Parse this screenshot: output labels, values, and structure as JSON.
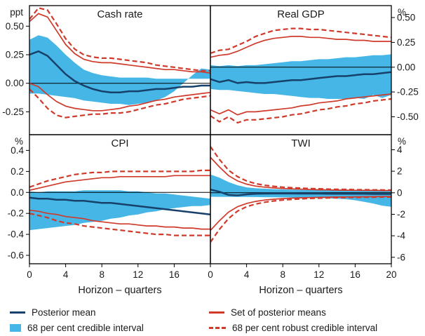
{
  "figure": {
    "x_axis_title": "Horizon – quarters",
    "x_range": [
      0,
      20
    ],
    "grid": false
  },
  "colors": {
    "posterior_mean": "#17416b",
    "credible_band": "#45b6e6",
    "red_lines": "#cf3a2b",
    "axis": "#000000",
    "text": "#1a1a1a",
    "background": "#ffffff"
  },
  "legend": {
    "posterior_mean": "Posterior mean",
    "credible_interval": "68 per cent credible interval",
    "set_of_posterior_means": "Set of posterior means",
    "robust_credible_interval": "68 per cent robust credible interval"
  },
  "chart_data": {
    "type": "line",
    "x_label": "Horizon – quarters",
    "x": [
      0,
      1,
      2,
      3,
      4,
      5,
      6,
      7,
      8,
      9,
      10,
      11,
      12,
      13,
      14,
      15,
      16,
      17,
      18,
      19,
      20
    ],
    "panels": [
      {
        "title": "Cash rate",
        "unit": "ppt",
        "label_side": "left",
        "ylim": [
          -0.45,
          0.68
        ],
        "y_ticks": [
          {
            "v": 0.5,
            "label": "0.50"
          },
          {
            "v": 0.25,
            "label": "0.25"
          },
          {
            "v": 0.0,
            "label": "0.00"
          },
          {
            "v": -0.25,
            "label": "-0.25"
          }
        ],
        "x_tick_labels": null,
        "series": {
          "posterior_mean": [
            0.25,
            0.28,
            0.24,
            0.16,
            0.08,
            0.02,
            -0.02,
            -0.05,
            -0.07,
            -0.08,
            -0.08,
            -0.07,
            -0.07,
            -0.06,
            -0.05,
            -0.05,
            -0.04,
            -0.03,
            -0.03,
            -0.02,
            -0.02
          ],
          "band_hi": [
            0.38,
            0.42,
            0.4,
            0.33,
            0.25,
            0.18,
            0.12,
            0.09,
            0.07,
            0.06,
            0.05,
            0.05,
            0.05,
            0.05,
            0.04,
            0.04,
            0.04,
            0.04,
            0.04,
            0.04,
            0.04
          ],
          "band_lo": [
            0.12,
            0.13,
            0.07,
            0.0,
            -0.07,
            -0.12,
            -0.15,
            -0.17,
            -0.18,
            -0.19,
            -0.18,
            -0.18,
            -0.17,
            -0.16,
            -0.15,
            -0.13,
            -0.12,
            -0.11,
            -0.1,
            -0.09,
            -0.09
          ],
          "means_hi": [
            0.54,
            0.61,
            0.58,
            0.46,
            0.34,
            0.26,
            0.21,
            0.19,
            0.18,
            0.18,
            0.17,
            0.16,
            0.15,
            0.14,
            0.13,
            0.12,
            0.12,
            0.11,
            0.1,
            0.1,
            0.09
          ],
          "means_lo": [
            0.0,
            -0.03,
            -0.1,
            -0.16,
            -0.2,
            -0.22,
            -0.23,
            -0.24,
            -0.24,
            -0.23,
            -0.22,
            -0.2,
            -0.19,
            -0.17,
            -0.15,
            -0.14,
            -0.12,
            -0.11,
            -0.1,
            -0.09,
            -0.08
          ],
          "robust_hi": [
            0.56,
            0.66,
            0.64,
            0.52,
            0.39,
            0.3,
            0.25,
            0.23,
            0.22,
            0.22,
            0.21,
            0.2,
            0.19,
            0.18,
            0.16,
            0.15,
            0.14,
            0.13,
            0.12,
            0.11,
            0.11
          ],
          "robust_lo": [
            -0.05,
            -0.13,
            -0.22,
            -0.28,
            -0.3,
            -0.29,
            -0.28,
            -0.27,
            -0.27,
            -0.26,
            -0.26,
            -0.25,
            -0.23,
            -0.21,
            -0.19,
            -0.18,
            -0.16,
            -0.14,
            -0.13,
            -0.12,
            -0.11
          ]
        }
      },
      {
        "title": "Real GDP",
        "unit": "%",
        "label_side": "right",
        "ylim": [
          -0.68,
          0.62
        ],
        "y_ticks": [
          {
            "v": 0.5,
            "label": "0.50"
          },
          {
            "v": 0.25,
            "label": "0.25"
          },
          {
            "v": 0.0,
            "label": "0.00"
          },
          {
            "v": -0.25,
            "label": "-0.25"
          },
          {
            "v": -0.5,
            "label": "-0.50"
          }
        ],
        "x_tick_labels": null,
        "series": {
          "posterior_mean": [
            -0.12,
            -0.15,
            -0.13,
            -0.16,
            -0.15,
            -0.16,
            -0.16,
            -0.15,
            -0.14,
            -0.13,
            -0.13,
            -0.12,
            -0.11,
            -0.1,
            -0.09,
            -0.09,
            -0.08,
            -0.07,
            -0.07,
            -0.06,
            -0.05
          ],
          "band_hi": [
            0.02,
            0.01,
            0.02,
            0.01,
            0.02,
            0.02,
            0.03,
            0.04,
            0.05,
            0.06,
            0.06,
            0.07,
            0.08,
            0.08,
            0.09,
            0.1,
            0.1,
            0.11,
            0.12,
            0.12,
            0.13
          ],
          "band_lo": [
            -0.28,
            -0.31,
            -0.28,
            -0.32,
            -0.31,
            -0.32,
            -0.32,
            -0.32,
            -0.31,
            -0.31,
            -0.3,
            -0.29,
            -0.28,
            -0.27,
            -0.27,
            -0.26,
            -0.25,
            -0.24,
            -0.23,
            -0.23,
            -0.22
          ],
          "means_hi": [
            0.1,
            0.12,
            0.13,
            0.16,
            0.2,
            0.24,
            0.27,
            0.29,
            0.3,
            0.31,
            0.31,
            0.3,
            0.3,
            0.29,
            0.28,
            0.28,
            0.27,
            0.27,
            0.26,
            0.26,
            0.26
          ],
          "means_lo": [
            -0.43,
            -0.47,
            -0.43,
            -0.48,
            -0.45,
            -0.45,
            -0.44,
            -0.43,
            -0.42,
            -0.41,
            -0.39,
            -0.38,
            -0.36,
            -0.35,
            -0.34,
            -0.32,
            -0.31,
            -0.3,
            -0.29,
            -0.28,
            -0.27
          ],
          "robust_hi": [
            0.14,
            0.17,
            0.18,
            0.22,
            0.26,
            0.31,
            0.34,
            0.37,
            0.38,
            0.39,
            0.39,
            0.38,
            0.38,
            0.37,
            0.36,
            0.35,
            0.34,
            0.33,
            0.32,
            0.31,
            0.3
          ],
          "robust_lo": [
            -0.49,
            -0.55,
            -0.5,
            -0.56,
            -0.53,
            -0.53,
            -0.52,
            -0.51,
            -0.5,
            -0.48,
            -0.47,
            -0.45,
            -0.43,
            -0.42,
            -0.4,
            -0.39,
            -0.37,
            -0.36,
            -0.34,
            -0.33,
            -0.32
          ]
        }
      },
      {
        "title": "CPI",
        "unit": "%",
        "label_side": "left",
        "ylim": [
          -0.68,
          0.55
        ],
        "y_ticks": [
          {
            "v": 0.4,
            "label": "0.4"
          },
          {
            "v": 0.2,
            "label": "0.2"
          },
          {
            "v": 0.0,
            "label": "0.0"
          },
          {
            "v": -0.2,
            "label": "-0.2"
          },
          {
            "v": -0.4,
            "label": "-0.4"
          },
          {
            "v": -0.6,
            "label": "-0.6"
          }
        ],
        "x_tick_labels": [
          "0",
          "4",
          "8",
          "12",
          "16"
        ],
        "series": {
          "posterior_mean": [
            -0.05,
            -0.06,
            -0.06,
            -0.07,
            -0.07,
            -0.08,
            -0.08,
            -0.09,
            -0.1,
            -0.1,
            -0.11,
            -0.12,
            -0.13,
            -0.14,
            -0.15,
            -0.16,
            -0.17,
            -0.18,
            -0.19,
            -0.2,
            -0.21
          ],
          "band_hi": [
            0.01,
            0.0,
            0.01,
            0.01,
            0.01,
            0.01,
            0.02,
            0.02,
            0.02,
            0.02,
            0.02,
            0.01,
            0.01,
            0.0,
            -0.01,
            -0.01,
            -0.02,
            -0.03,
            -0.04,
            -0.05,
            -0.06
          ],
          "band_lo": [
            -0.12,
            -0.13,
            -0.13,
            -0.14,
            -0.15,
            -0.16,
            -0.18,
            -0.19,
            -0.21,
            -0.22,
            -0.24,
            -0.25,
            -0.27,
            -0.28,
            -0.29,
            -0.31,
            -0.32,
            -0.33,
            -0.34,
            -0.35,
            -0.36
          ],
          "means_hi": [
            0.02,
            0.04,
            0.06,
            0.08,
            0.1,
            0.11,
            0.12,
            0.13,
            0.14,
            0.14,
            0.15,
            0.15,
            0.15,
            0.15,
            0.15,
            0.15,
            0.16,
            0.16,
            0.16,
            0.16,
            0.16
          ],
          "means_lo": [
            -0.17,
            -0.18,
            -0.2,
            -0.21,
            -0.23,
            -0.24,
            -0.25,
            -0.27,
            -0.28,
            -0.29,
            -0.3,
            -0.3,
            -0.31,
            -0.32,
            -0.32,
            -0.33,
            -0.33,
            -0.34,
            -0.34,
            -0.35,
            -0.35
          ],
          "robust_hi": [
            0.05,
            0.08,
            0.11,
            0.13,
            0.15,
            0.17,
            0.18,
            0.19,
            0.19,
            0.2,
            0.2,
            0.2,
            0.2,
            0.2,
            0.2,
            0.2,
            0.2,
            0.2,
            0.2,
            0.21,
            0.21
          ],
          "robust_lo": [
            -0.2,
            -0.22,
            -0.24,
            -0.27,
            -0.29,
            -0.3,
            -0.32,
            -0.33,
            -0.34,
            -0.35,
            -0.36,
            -0.37,
            -0.38,
            -0.39,
            -0.4,
            -0.4,
            -0.41,
            -0.41,
            -0.41,
            -0.41,
            -0.41
          ]
        }
      },
      {
        "title": "TWI",
        "unit": "%",
        "label_side": "right",
        "ylim": [
          -6.6,
          5.4
        ],
        "y_ticks": [
          {
            "v": 4,
            "label": "4"
          },
          {
            "v": 2,
            "label": "2"
          },
          {
            "v": 0,
            "label": "0"
          },
          {
            "v": -2,
            "label": "-2"
          },
          {
            "v": -4,
            "label": "-4"
          },
          {
            "v": -6,
            "label": "-6"
          }
        ],
        "x_tick_labels": [
          "0",
          "4",
          "8",
          "12",
          "16",
          "20"
        ],
        "series": {
          "posterior_mean": [
            0.3,
            0.1,
            -0.2,
            -0.25,
            -0.15,
            -0.1,
            -0.08,
            -0.07,
            -0.07,
            -0.07,
            -0.08,
            -0.08,
            -0.08,
            -0.09,
            -0.09,
            -0.1,
            -0.1,
            -0.1,
            -0.11,
            -0.11,
            -0.11
          ],
          "band_hi": [
            1.7,
            1.4,
            1.0,
            0.7,
            0.5,
            0.42,
            0.38,
            0.34,
            0.31,
            0.29,
            0.27,
            0.26,
            0.25,
            0.24,
            0.23,
            0.22,
            0.21,
            0.21,
            0.2,
            0.2,
            0.19
          ],
          "band_lo": [
            -1.3,
            -1.2,
            -1.0,
            -0.85,
            -0.7,
            -0.6,
            -0.55,
            -0.52,
            -0.49,
            -0.47,
            -0.45,
            -0.44,
            -0.43,
            -0.42,
            -0.41,
            -0.4,
            -0.39,
            -0.39,
            -0.38,
            -0.38,
            -0.37
          ],
          "means_hi": [
            3.3,
            2.4,
            1.6,
            1.1,
            0.8,
            0.62,
            0.52,
            0.45,
            0.4,
            0.36,
            0.33,
            0.3,
            0.28,
            0.27,
            0.25,
            0.24,
            0.23,
            0.22,
            0.22,
            0.21,
            0.2
          ],
          "means_lo": [
            -3.5,
            -2.6,
            -1.8,
            -1.3,
            -1.0,
            -0.8,
            -0.68,
            -0.6,
            -0.54,
            -0.5,
            -0.47,
            -0.45,
            -0.43,
            -0.41,
            -0.4,
            -0.39,
            -0.38,
            -0.37,
            -0.36,
            -0.35,
            -0.35
          ],
          "robust_hi": [
            4.3,
            3.1,
            2.1,
            1.5,
            1.1,
            0.85,
            0.7,
            0.6,
            0.52,
            0.47,
            0.43,
            0.39,
            0.37,
            0.34,
            0.32,
            0.31,
            0.29,
            0.28,
            0.27,
            0.26,
            0.25
          ],
          "robust_lo": [
            -4.6,
            -3.4,
            -2.4,
            -1.7,
            -1.3,
            -1.05,
            -0.88,
            -0.76,
            -0.68,
            -0.62,
            -0.57,
            -0.53,
            -0.5,
            -0.48,
            -0.46,
            -0.44,
            -0.43,
            -0.42,
            -0.41,
            -0.4,
            -0.39
          ]
        }
      }
    ]
  }
}
